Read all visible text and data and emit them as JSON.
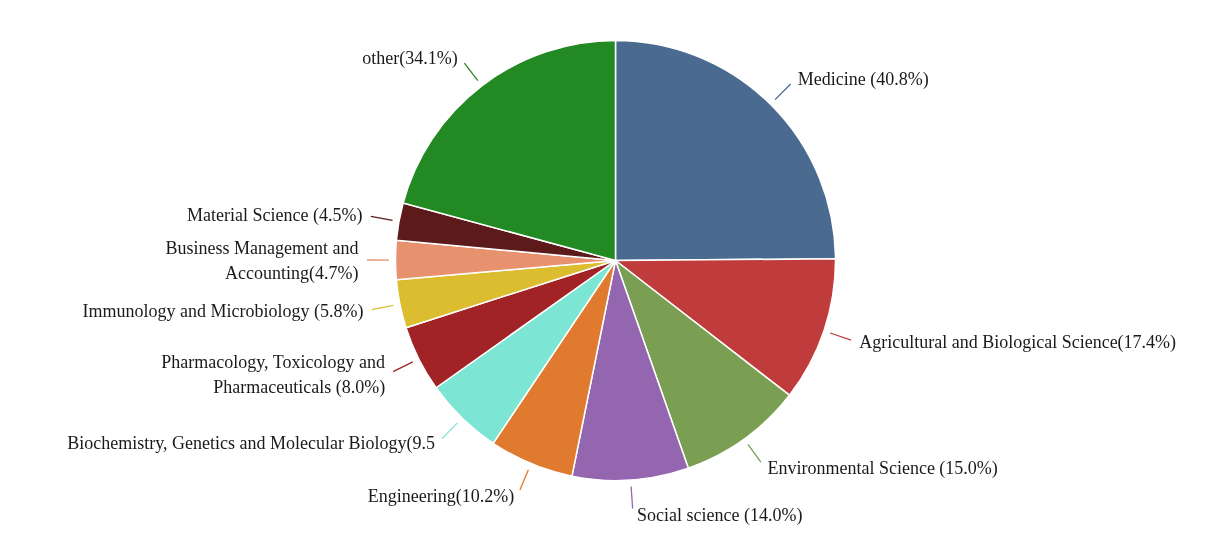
{
  "chart_data": {
    "type": "pie",
    "categories": [
      "Medicine (40.8%)",
      "Agricultural and Biological Science(17.4%)",
      "Environmental Science (15.0%)",
      "Social science (14.0%)",
      "Engineering(10.2%)",
      "Biochemistry, Genetics and Molecular Biology(9.5",
      "Pharmacology, Toxicology and\nPharmaceuticals (8.0%)",
      "Immunology and Microbiology (5.8%)",
      "Business Management and\nAccounting(4.7%)",
      "Material Science (4.5%)",
      "other(34.1%)"
    ],
    "values": [
      40.8,
      17.4,
      15.0,
      14.0,
      10.2,
      9.5,
      8.0,
      5.8,
      4.7,
      4.5,
      34.1
    ],
    "colors": [
      "#4a6a90",
      "#c03c3c",
      "#7a9e52",
      "#9466b0",
      "#e07a2e",
      "#7de5d3",
      "#a12326",
      "#dcbd30",
      "#e8916f",
      "#5c1a1a",
      "#238a23"
    ]
  }
}
